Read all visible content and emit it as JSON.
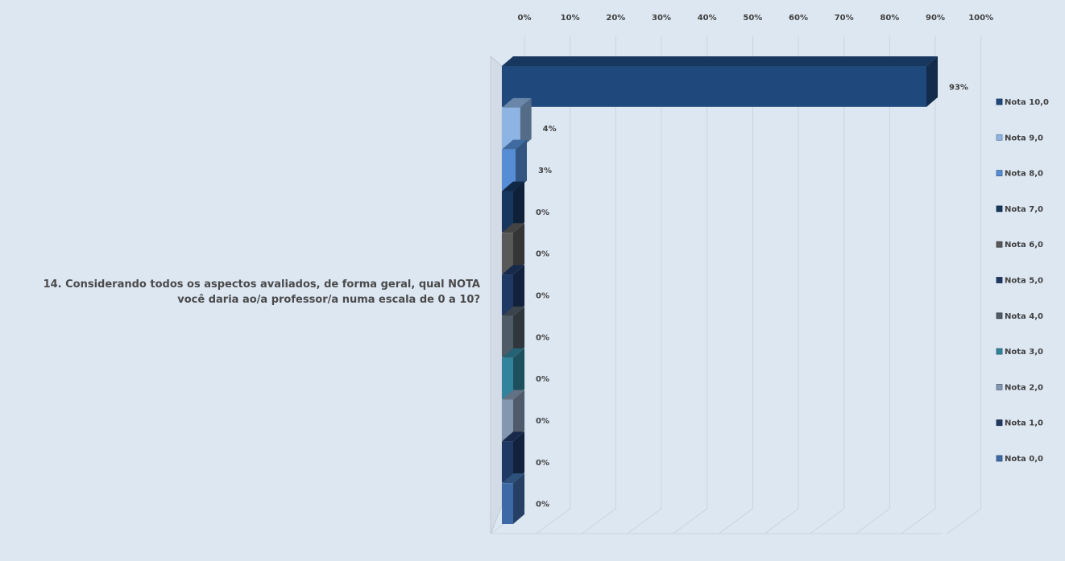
{
  "chart_data": {
    "type": "bar",
    "orientation": "horizontal",
    "category": "14. Considerando todos os aspectos avaliados, de forma geral, qual NOTA você daria ao/a professor/a numa escala de 0 a 10?",
    "x_ticks": [
      "0%",
      "10%",
      "20%",
      "30%",
      "40%",
      "50%",
      "60%",
      "70%",
      "80%",
      "90%",
      "100%"
    ],
    "xlim": [
      0,
      100
    ],
    "legend_position": "right",
    "series": [
      {
        "name": "Nota 10,0",
        "value": 93,
        "label": "93%",
        "color": "#1f497d"
      },
      {
        "name": "Nota 9,0",
        "value": 4,
        "label": "4%",
        "color": "#8db4e2"
      },
      {
        "name": "Nota 8,0",
        "value": 3,
        "label": "3%",
        "color": "#558ed5"
      },
      {
        "name": "Nota 7,0",
        "value": 0,
        "label": "0%",
        "color": "#17375e"
      },
      {
        "name": "Nota 6,0",
        "value": 0,
        "label": "0%",
        "color": "#595959"
      },
      {
        "name": "Nota 5,0",
        "value": 0,
        "label": "0%",
        "color": "#1f3864"
      },
      {
        "name": "Nota 4,0",
        "value": 0,
        "label": "0%",
        "color": "#4f5b66"
      },
      {
        "name": "Nota 3,0",
        "value": 0,
        "label": "0%",
        "color": "#31849b"
      },
      {
        "name": "Nota 2,0",
        "value": 0,
        "label": "0%",
        "color": "#8497b0"
      },
      {
        "name": "Nota 1,0",
        "value": 0,
        "label": "0%",
        "color": "#1f3864"
      },
      {
        "name": "Nota 0,0",
        "value": 0,
        "label": "0%",
        "color": "#3d6aa6"
      }
    ]
  }
}
